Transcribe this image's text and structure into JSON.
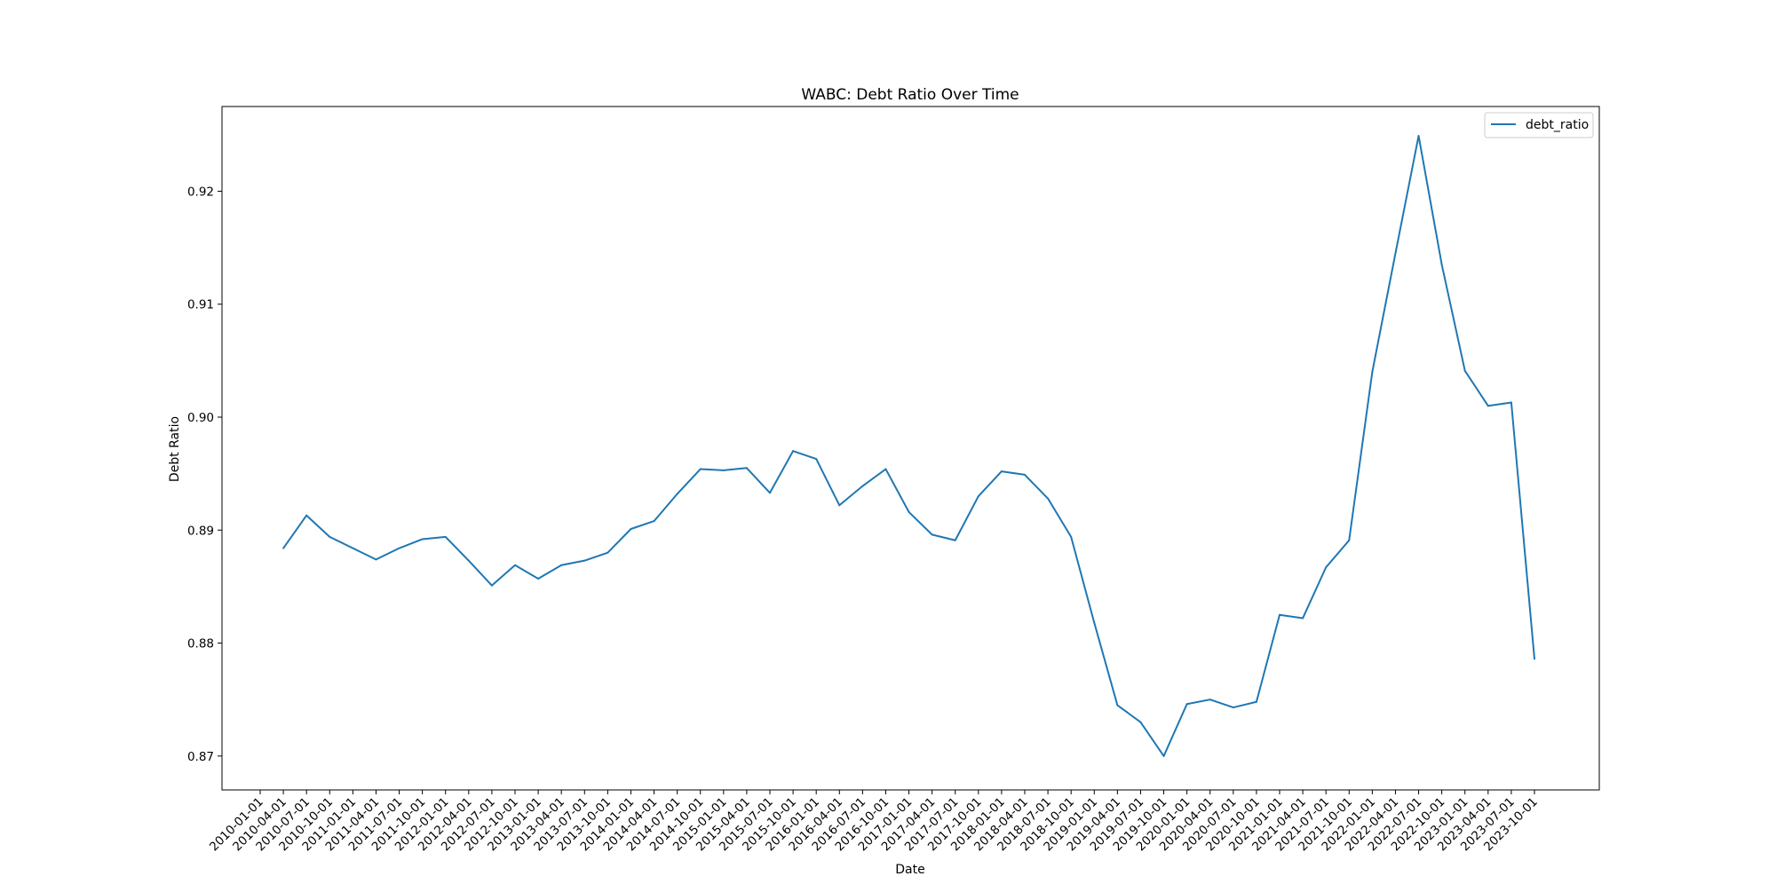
{
  "chart_data": {
    "type": "line",
    "title": "WABC: Debt Ratio Over Time",
    "xlabel": "Date",
    "ylabel": "Debt Ratio",
    "ylim": [
      0.867,
      0.9275
    ],
    "yticks": [
      0.87,
      0.88,
      0.89,
      0.9,
      0.91,
      0.92
    ],
    "ytick_labels": [
      "0.87",
      "0.88",
      "0.89",
      "0.90",
      "0.91",
      "0.92"
    ],
    "x_categories": [
      "2010-01-01",
      "2010-04-01",
      "2010-07-01",
      "2010-10-01",
      "2011-01-01",
      "2011-04-01",
      "2011-07-01",
      "2011-10-01",
      "2012-01-01",
      "2012-04-01",
      "2012-07-01",
      "2012-10-01",
      "2013-01-01",
      "2013-04-01",
      "2013-07-01",
      "2013-10-01",
      "2014-01-01",
      "2014-04-01",
      "2014-07-01",
      "2014-10-01",
      "2015-01-01",
      "2015-04-01",
      "2015-07-01",
      "2015-10-01",
      "2016-01-01",
      "2016-04-01",
      "2016-07-01",
      "2016-10-01",
      "2017-01-01",
      "2017-04-01",
      "2017-07-01",
      "2017-10-01",
      "2018-01-01",
      "2018-04-01",
      "2018-07-01",
      "2018-10-01",
      "2019-01-01",
      "2019-04-01",
      "2019-07-01",
      "2019-10-01",
      "2020-01-01",
      "2020-04-01",
      "2020-07-01",
      "2020-10-01",
      "2021-01-01",
      "2021-04-01",
      "2021-07-01",
      "2021-10-01",
      "2022-01-01",
      "2022-04-01",
      "2022-07-01",
      "2022-10-01",
      "2023-01-01",
      "2023-04-01",
      "2023-07-01",
      "2023-10-01"
    ],
    "grid": false,
    "legend_position": "top-right",
    "series": [
      {
        "name": "debt_ratio",
        "color": "#1f77b4",
        "x": [
          "2010-04-01",
          "2010-07-01",
          "2010-10-01",
          "2011-01-01",
          "2011-04-01",
          "2011-07-01",
          "2011-10-01",
          "2012-01-01",
          "2012-04-01",
          "2012-07-01",
          "2012-10-01",
          "2013-01-01",
          "2013-04-01",
          "2013-07-01",
          "2013-10-01",
          "2014-01-01",
          "2014-04-01",
          "2014-07-01",
          "2014-10-01",
          "2015-01-01",
          "2015-04-01",
          "2015-07-01",
          "2015-10-01",
          "2016-01-01",
          "2016-04-01",
          "2016-07-01",
          "2016-10-01",
          "2017-01-01",
          "2017-04-01",
          "2017-07-01",
          "2017-10-01",
          "2018-01-01",
          "2018-04-01",
          "2018-07-01",
          "2018-10-01",
          "2019-01-01",
          "2019-04-01",
          "2019-07-01",
          "2019-10-01",
          "2020-01-01",
          "2020-04-01",
          "2020-07-01",
          "2020-10-01",
          "2021-01-01",
          "2021-04-01",
          "2021-07-01",
          "2021-10-01",
          "2022-01-01",
          "2022-04-01",
          "2022-07-01",
          "2022-10-01",
          "2023-01-01",
          "2023-04-01",
          "2023-07-01",
          "2023-10-01"
        ],
        "values": [
          0.8884,
          0.8913,
          0.8894,
          0.8884,
          0.8874,
          0.8884,
          0.8892,
          0.8894,
          0.8873,
          0.8851,
          0.8869,
          0.8857,
          0.8869,
          0.8873,
          0.888,
          0.8901,
          0.8908,
          0.8932,
          0.8954,
          0.8953,
          0.8955,
          0.8933,
          0.897,
          0.8963,
          0.8922,
          0.8939,
          0.8954,
          0.8916,
          0.8896,
          0.8891,
          0.893,
          0.8952,
          0.8949,
          0.8928,
          0.8894,
          0.8818,
          0.8745,
          0.873,
          0.87,
          0.8746,
          0.875,
          0.8743,
          0.8748,
          0.8825,
          0.8822,
          0.8867,
          0.8891,
          0.904,
          0.9145,
          0.9249,
          0.9135,
          0.9041,
          0.901,
          0.9013,
          0.8786
        ]
      }
    ]
  }
}
